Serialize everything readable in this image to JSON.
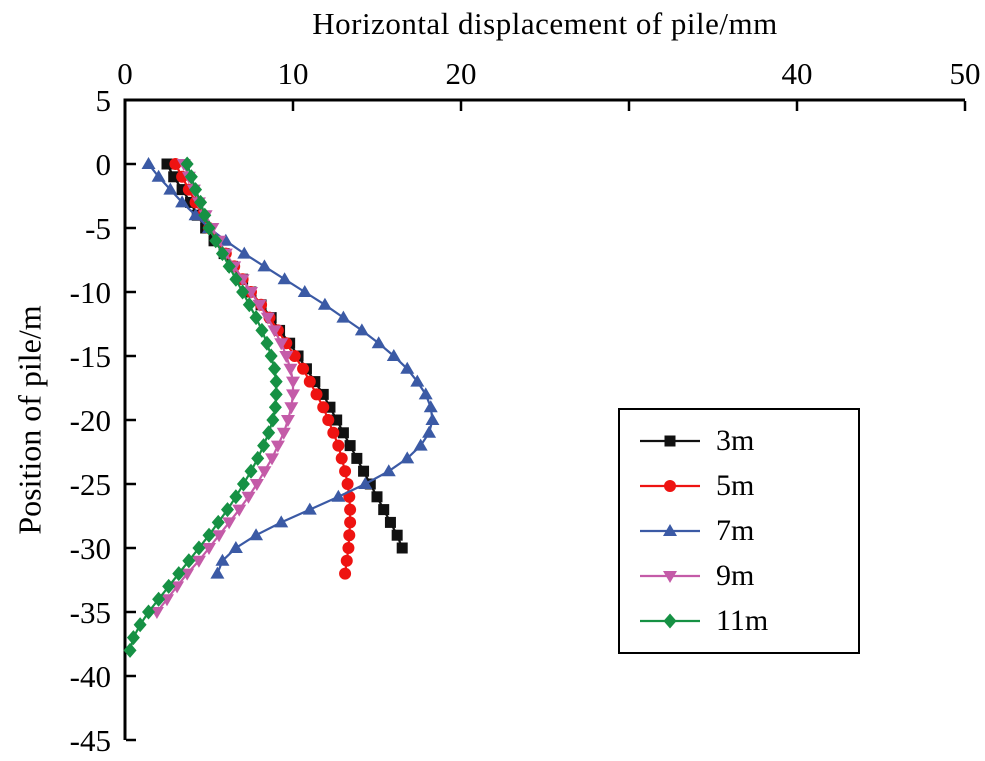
{
  "figure": {
    "title": "Horizontal displacement of pile/mm",
    "ylabel": "Position of pile/m"
  },
  "chart_data": {
    "type": "line",
    "title": "",
    "xlabel": "Horizontal displacement of pile/mm",
    "ylabel": "Position of pile/m",
    "x_axis_position": "top",
    "grid": false,
    "legend_position": "middle-right",
    "xlim": [
      0,
      50
    ],
    "y_range": [
      5,
      -45
    ],
    "x_ticks": [
      0,
      10,
      20,
      30,
      40,
      50
    ],
    "x_tick_labels": [
      "0",
      "10",
      "20",
      "",
      "40",
      "50"
    ],
    "y_ticks": [
      5,
      0,
      -5,
      -10,
      -15,
      -20,
      -25,
      -30,
      -35,
      -40,
      -45
    ],
    "y_tick_labels": [
      "5",
      "0",
      "-5",
      "-10",
      "-15",
      "-20",
      "-25",
      "-30",
      "-35",
      "-40",
      "-45"
    ],
    "series": [
      {
        "name": "3m",
        "color": "#111111",
        "marker": "square",
        "points": [
          [
            2.5,
            0
          ],
          [
            2.9,
            -1
          ],
          [
            3.4,
            -2
          ],
          [
            3.9,
            -3
          ],
          [
            4.3,
            -4
          ],
          [
            4.8,
            -5
          ],
          [
            5.3,
            -6
          ],
          [
            5.9,
            -7
          ],
          [
            6.4,
            -8
          ],
          [
            7.0,
            -9
          ],
          [
            7.5,
            -10
          ],
          [
            8.1,
            -11
          ],
          [
            8.7,
            -12
          ],
          [
            9.2,
            -13
          ],
          [
            9.8,
            -14
          ],
          [
            10.3,
            -15
          ],
          [
            10.8,
            -16
          ],
          [
            11.3,
            -17
          ],
          [
            11.8,
            -18
          ],
          [
            12.2,
            -19
          ],
          [
            12.6,
            -20
          ],
          [
            13.0,
            -21
          ],
          [
            13.4,
            -22
          ],
          [
            13.8,
            -23
          ],
          [
            14.2,
            -24
          ],
          [
            14.6,
            -25
          ],
          [
            15.0,
            -26
          ],
          [
            15.4,
            -27
          ],
          [
            15.8,
            -28
          ],
          [
            16.2,
            -29
          ],
          [
            16.5,
            -30
          ]
        ]
      },
      {
        "name": "5m",
        "color": "#ee1311",
        "marker": "circle",
        "points": [
          [
            3.0,
            0
          ],
          [
            3.4,
            -1
          ],
          [
            3.8,
            -2
          ],
          [
            4.2,
            -3
          ],
          [
            4.6,
            -4
          ],
          [
            5.0,
            -5
          ],
          [
            5.5,
            -6
          ],
          [
            6.0,
            -7
          ],
          [
            6.5,
            -8
          ],
          [
            7.0,
            -9
          ],
          [
            7.5,
            -10
          ],
          [
            8.1,
            -11
          ],
          [
            8.6,
            -12
          ],
          [
            9.1,
            -13
          ],
          [
            9.6,
            -14
          ],
          [
            10.1,
            -15
          ],
          [
            10.6,
            -16
          ],
          [
            11.0,
            -17
          ],
          [
            11.4,
            -18
          ],
          [
            11.8,
            -19
          ],
          [
            12.1,
            -20
          ],
          [
            12.4,
            -21
          ],
          [
            12.7,
            -22
          ],
          [
            12.9,
            -23
          ],
          [
            13.1,
            -24
          ],
          [
            13.25,
            -25
          ],
          [
            13.35,
            -26
          ],
          [
            13.4,
            -27
          ],
          [
            13.4,
            -28
          ],
          [
            13.35,
            -29
          ],
          [
            13.3,
            -30
          ],
          [
            13.2,
            -31
          ],
          [
            13.1,
            -32
          ]
        ]
      },
      {
        "name": "7m",
        "color": "#3b5aa5",
        "marker": "triangle-up",
        "points": [
          [
            1.4,
            0
          ],
          [
            2.0,
            -1
          ],
          [
            2.7,
            -2
          ],
          [
            3.4,
            -3
          ],
          [
            4.2,
            -4
          ],
          [
            5.0,
            -5
          ],
          [
            6.0,
            -6
          ],
          [
            7.1,
            -7
          ],
          [
            8.3,
            -8
          ],
          [
            9.5,
            -9
          ],
          [
            10.7,
            -10
          ],
          [
            11.9,
            -11
          ],
          [
            13.0,
            -12
          ],
          [
            14.1,
            -13
          ],
          [
            15.1,
            -14
          ],
          [
            16.0,
            -15
          ],
          [
            16.8,
            -16
          ],
          [
            17.4,
            -17
          ],
          [
            17.9,
            -18
          ],
          [
            18.2,
            -19
          ],
          [
            18.3,
            -20
          ],
          [
            18.1,
            -21
          ],
          [
            17.6,
            -22
          ],
          [
            16.8,
            -23
          ],
          [
            15.7,
            -24
          ],
          [
            14.3,
            -25
          ],
          [
            12.7,
            -26
          ],
          [
            11.0,
            -27
          ],
          [
            9.3,
            -28
          ],
          [
            7.8,
            -29
          ],
          [
            6.6,
            -30
          ],
          [
            5.8,
            -31
          ],
          [
            5.5,
            -32
          ]
        ]
      },
      {
        "name": "9m",
        "color": "#c45ba8",
        "marker": "triangle-down",
        "points": [
          [
            3.5,
            0
          ],
          [
            3.8,
            -1
          ],
          [
            4.1,
            -2
          ],
          [
            4.4,
            -3
          ],
          [
            4.8,
            -4
          ],
          [
            5.2,
            -5
          ],
          [
            5.6,
            -6
          ],
          [
            6.0,
            -7
          ],
          [
            6.5,
            -8
          ],
          [
            7.0,
            -9
          ],
          [
            7.5,
            -10
          ],
          [
            8.0,
            -11
          ],
          [
            8.5,
            -12
          ],
          [
            8.9,
            -13
          ],
          [
            9.3,
            -14
          ],
          [
            9.6,
            -15
          ],
          [
            9.85,
            -16
          ],
          [
            10.0,
            -17
          ],
          [
            10.0,
            -18
          ],
          [
            9.9,
            -19
          ],
          [
            9.7,
            -20
          ],
          [
            9.45,
            -21
          ],
          [
            9.1,
            -22
          ],
          [
            8.75,
            -23
          ],
          [
            8.3,
            -24
          ],
          [
            7.85,
            -25
          ],
          [
            7.35,
            -26
          ],
          [
            6.8,
            -27
          ],
          [
            6.2,
            -28
          ],
          [
            5.6,
            -29
          ],
          [
            5.0,
            -30
          ],
          [
            4.4,
            -31
          ],
          [
            3.7,
            -32
          ],
          [
            3.1,
            -33
          ],
          [
            2.5,
            -34
          ],
          [
            1.9,
            -35
          ]
        ]
      },
      {
        "name": "11m",
        "color": "#169144",
        "marker": "diamond",
        "points": [
          [
            3.7,
            0
          ],
          [
            3.95,
            -1
          ],
          [
            4.2,
            -2
          ],
          [
            4.5,
            -3
          ],
          [
            4.75,
            -4
          ],
          [
            5.0,
            -5
          ],
          [
            5.4,
            -6
          ],
          [
            5.8,
            -7
          ],
          [
            6.2,
            -8
          ],
          [
            6.6,
            -9
          ],
          [
            7.0,
            -10
          ],
          [
            7.4,
            -11
          ],
          [
            7.8,
            -12
          ],
          [
            8.15,
            -13
          ],
          [
            8.45,
            -14
          ],
          [
            8.7,
            -15
          ],
          [
            8.9,
            -16
          ],
          [
            9.0,
            -17
          ],
          [
            9.0,
            -18
          ],
          [
            8.95,
            -19
          ],
          [
            8.8,
            -20
          ],
          [
            8.55,
            -21
          ],
          [
            8.25,
            -22
          ],
          [
            7.9,
            -23
          ],
          [
            7.5,
            -24
          ],
          [
            7.05,
            -25
          ],
          [
            6.6,
            -26
          ],
          [
            6.1,
            -27
          ],
          [
            5.55,
            -28
          ],
          [
            5.0,
            -29
          ],
          [
            4.4,
            -30
          ],
          [
            3.8,
            -31
          ],
          [
            3.2,
            -32
          ],
          [
            2.6,
            -33
          ],
          [
            2.0,
            -34
          ],
          [
            1.4,
            -35
          ],
          [
            0.9,
            -36
          ],
          [
            0.5,
            -37
          ],
          [
            0.3,
            -38
          ]
        ]
      }
    ]
  }
}
